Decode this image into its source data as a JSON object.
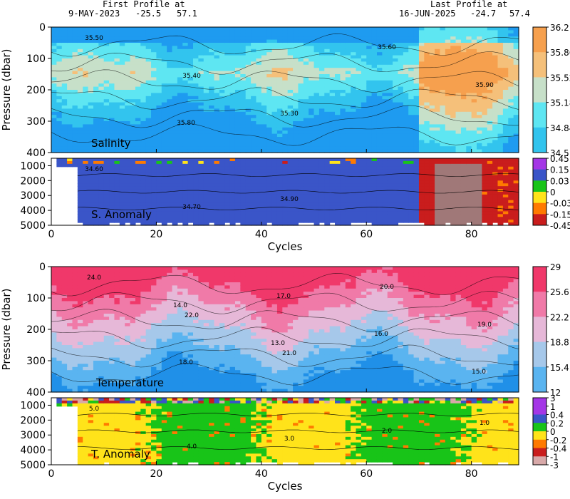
{
  "header": {
    "first_label": "First Profile at",
    "first_date": "9-MAY-2023",
    "first_lat": "-25.5",
    "first_lon": "57.1",
    "last_label": "Last Profile at",
    "last_date": "16-JUN-2025",
    "last_lat": "-24.7",
    "last_lon": "57.4"
  },
  "chart_data": [
    {
      "type": "heatmap",
      "panel_label": "Salinity",
      "ylabel": "Pressure (dbar)",
      "xlim": [
        0,
        89
      ],
      "ylim": [
        400,
        0
      ],
      "yticks": [
        "0",
        "100",
        "200",
        "300",
        "400"
      ],
      "colorbar_ticks": [
        "36.2",
        "35.86",
        "35.52",
        "35.18",
        "34.84",
        "34.5"
      ],
      "contour_labels": [
        "35.50",
        "35.40",
        "35.30",
        "35.60",
        "35.90",
        "35.80"
      ],
      "colors": [
        "#1e9bf0",
        "#32c4ee",
        "#5ee6f2",
        "#c7e0c9",
        "#f5c07a",
        "#f6a04e"
      ]
    },
    {
      "type": "heatmap",
      "panel_label": "S. Anomaly",
      "xlim": [
        0,
        89
      ],
      "ylim": [
        5000,
        500
      ],
      "yticks": [
        "1000",
        "2000",
        "3000",
        "4000",
        "5000"
      ],
      "xticks": [
        "0",
        "20",
        "40",
        "60",
        "80"
      ],
      "xlabel": "Cycles",
      "colorbar_ticks": [
        "0.45",
        "0.15",
        "0.03",
        "0",
        "-0.03",
        "-0.15",
        "-0.45"
      ],
      "contour_labels": [
        "34.60",
        "34.70",
        "34.90"
      ],
      "colors": [
        "#d8a9a9",
        "#c91d1d",
        "#ff7a00",
        "#ffe31a",
        "#18c418",
        "#3a55c8",
        "#a436e6"
      ]
    },
    {
      "type": "heatmap",
      "panel_label": "Temperature",
      "ylabel": "Pressure (dbar)",
      "xlim": [
        0,
        89
      ],
      "ylim": [
        400,
        0
      ],
      "yticks": [
        "0",
        "100",
        "200",
        "300",
        "400"
      ],
      "colorbar_ticks": [
        "29",
        "25.6",
        "22.2",
        "18.8",
        "15.4",
        "12"
      ],
      "contour_labels": [
        "24.0",
        "22.0",
        "21.0",
        "20.0",
        "19.0",
        "18.0",
        "17.0",
        "16.0",
        "15.0",
        "14.0",
        "13.0"
      ],
      "colors": [
        "#2090e8",
        "#5ab4f0",
        "#a6c8ea",
        "#e6b8d8",
        "#f07aa8",
        "#f0386a"
      ]
    },
    {
      "type": "heatmap",
      "panel_label": "T. Anomaly",
      "xlim": [
        0,
        89
      ],
      "ylim": [
        5000,
        500
      ],
      "yticks": [
        "1000",
        "2000",
        "3000",
        "4000",
        "5000"
      ],
      "xticks": [
        "0",
        "20",
        "40",
        "60",
        "80"
      ],
      "xlabel": "Cycles",
      "colorbar_ticks": [
        "3",
        "1",
        "0.4",
        "0.2",
        "0",
        "-0.2",
        "-0.4",
        "-1",
        "-3"
      ],
      "contour_labels": [
        "5.0",
        "4.0",
        "3.0",
        "2.0",
        "1.0"
      ],
      "colors": [
        "#d8a9a9",
        "#c91d1d",
        "#ff7a00",
        "#ffe31a",
        "#18c418",
        "#3a55c8",
        "#a436e6"
      ]
    }
  ]
}
